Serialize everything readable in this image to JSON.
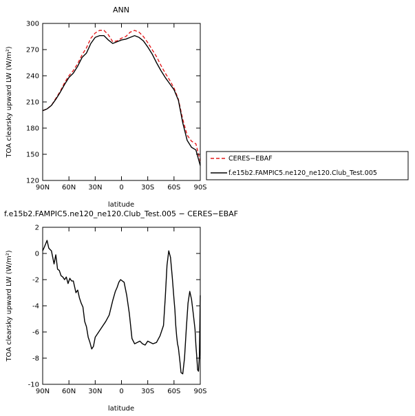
{
  "chart_data": [
    {
      "type": "line",
      "title": "ANN",
      "xlabel": "latitude",
      "ylabel": "TOA clearsky upward LW (W/m²)",
      "ylim": [
        120,
        300
      ],
      "yticks": [
        120,
        150,
        180,
        210,
        240,
        270,
        300
      ],
      "xlim": [
        90,
        -90
      ],
      "xticks": [
        90,
        60,
        30,
        0,
        -30,
        -60,
        -90
      ],
      "xtick_labels": [
        "90N",
        "60N",
        "30N",
        "0",
        "30S",
        "60S",
        "90S"
      ],
      "grid": false,
      "legend_position": "right",
      "series": [
        {
          "name": "CERES−EBAF",
          "color": "#e31a1c",
          "dash": "dashed",
          "x": [
            90,
            85,
            80,
            75,
            70,
            65,
            60,
            55,
            50,
            45,
            40,
            35,
            30,
            25,
            20,
            15,
            10,
            5,
            0,
            -5,
            -10,
            -15,
            -20,
            -25,
            -30,
            -35,
            -40,
            -45,
            -50,
            -55,
            -60,
            -65,
            -70,
            -75,
            -80,
            -85,
            -90
          ],
          "y": [
            200,
            202,
            206,
            214,
            222,
            232,
            240,
            246,
            254,
            264,
            272,
            283,
            289,
            292,
            292,
            287,
            279,
            280,
            283,
            285,
            290,
            292,
            290,
            285,
            278,
            270,
            262,
            252,
            243,
            235,
            226,
            213,
            190,
            172,
            165,
            162,
            142
          ]
        },
        {
          "name": "f.e15b2.FAMPIC5.ne120_ne120.Club_Test.005",
          "color": "#000000",
          "dash": "solid",
          "x": [
            90,
            85,
            80,
            75,
            70,
            65,
            60,
            55,
            50,
            45,
            40,
            35,
            30,
            25,
            20,
            15,
            10,
            5,
            0,
            -5,
            -10,
            -15,
            -20,
            -25,
            -30,
            -35,
            -40,
            -45,
            -50,
            -55,
            -60,
            -65,
            -70,
            -75,
            -80,
            -85,
            -90
          ],
          "y": [
            200,
            202,
            206,
            213,
            221,
            230,
            238,
            243,
            251,
            261,
            266,
            277,
            284,
            286,
            286,
            281,
            277,
            279,
            281,
            282,
            284,
            286,
            284,
            280,
            273,
            265,
            255,
            246,
            238,
            231,
            224,
            212,
            186,
            166,
            158,
            155,
            137
          ]
        }
      ]
    },
    {
      "type": "line",
      "title": "f.e15b2.FAMPIC5.ne120_ne120.Club_Test.005 − CERES−EBAF",
      "xlabel": "latitude",
      "ylabel": "TOA clearsky upward LW (W/m²)",
      "ylim": [
        -10,
        2
      ],
      "yticks": [
        -10,
        -8,
        -6,
        -4,
        -2,
        0,
        2
      ],
      "xlim": [
        90,
        -90
      ],
      "xticks": [
        90,
        60,
        30,
        0,
        -30,
        -60,
        -90
      ],
      "xtick_labels": [
        "90N",
        "60N",
        "30N",
        "0",
        "30S",
        "60S",
        "90S"
      ],
      "grid": false,
      "series": [
        {
          "color": "#000000",
          "dash": "solid",
          "x": [
            90,
            88,
            85,
            83,
            80,
            77,
            75,
            73,
            71,
            69,
            67,
            65,
            63,
            61,
            59,
            57,
            55,
            52,
            50,
            48,
            46,
            44,
            42,
            40,
            38,
            36,
            34,
            32,
            30,
            26,
            22,
            18,
            14,
            10,
            7,
            5,
            3,
            1,
            -1,
            -3,
            -6,
            -9,
            -12,
            -15,
            -18,
            -21,
            -24,
            -27,
            -30,
            -33,
            -36,
            -40,
            -44,
            -48,
            -50,
            -52,
            -54,
            -56,
            -58,
            -60,
            -61,
            -62,
            -63,
            -64,
            -65,
            -66,
            -67,
            -68,
            -70,
            -72,
            -74,
            -76,
            -78,
            -80,
            -82,
            -84,
            -85,
            -86,
            -87,
            -88,
            -89,
            -90
          ],
          "y": [
            0.2,
            0.5,
            1.0,
            0.4,
            0.2,
            -0.8,
            -0.1,
            -1.2,
            -1.3,
            -1.7,
            -1.8,
            -2.0,
            -1.8,
            -2.3,
            -1.9,
            -2.1,
            -2.1,
            -3.0,
            -2.8,
            -3.4,
            -3.8,
            -4.1,
            -5.2,
            -5.6,
            -6.4,
            -6.8,
            -7.3,
            -7.1,
            -6.4,
            -6.0,
            -5.6,
            -5.2,
            -4.7,
            -3.6,
            -2.9,
            -2.6,
            -2.2,
            -2.0,
            -2.1,
            -2.2,
            -3.2,
            -4.6,
            -6.5,
            -6.9,
            -6.8,
            -6.7,
            -6.9,
            -7.0,
            -6.7,
            -6.8,
            -6.9,
            -6.8,
            -6.3,
            -5.5,
            -3.4,
            -0.9,
            0.2,
            -0.3,
            -1.8,
            -3.5,
            -4.3,
            -5.5,
            -6.3,
            -6.9,
            -7.2,
            -7.8,
            -8.4,
            -9.1,
            -9.2,
            -8.0,
            -5.8,
            -3.8,
            -2.9,
            -3.5,
            -4.6,
            -5.8,
            -7.0,
            -7.9,
            -8.9,
            -9.0,
            -7.8,
            -3.2
          ]
        }
      ]
    }
  ]
}
